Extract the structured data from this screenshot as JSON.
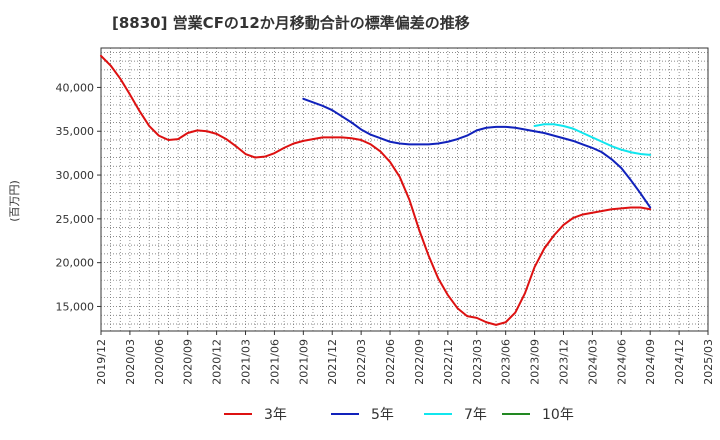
{
  "chart_data": {
    "type": "line",
    "title": "[8830]  営業CFの12か月移動合計の標準偏差の推移",
    "ylabel": "(百万円)",
    "xlabel": "",
    "ylim": [
      12200,
      44500
    ],
    "xlim": [
      "2019-12",
      "2025-03"
    ],
    "grid": true,
    "legend_position": "bottom",
    "x_tick_labels": [
      "2019/12",
      "2020/03",
      "2020/06",
      "2020/09",
      "2020/12",
      "2021/03",
      "2021/06",
      "2021/09",
      "2021/12",
      "2022/03",
      "2022/06",
      "2022/09",
      "2022/12",
      "2023/03",
      "2023/06",
      "2023/09",
      "2023/12",
      "2024/03",
      "2024/06",
      "2024/09",
      "2024/12",
      "2025/03"
    ],
    "y_ticks": [
      15000,
      20000,
      25000,
      30000,
      35000,
      40000
    ],
    "y_tick_labels": [
      "15,000",
      "20,000",
      "25,000",
      "30,000",
      "35,000",
      "40,000"
    ],
    "series": [
      {
        "name": "3年",
        "color": "#dd1111",
        "x": [
          "2019-12",
          "2020-01",
          "2020-02",
          "2020-03",
          "2020-04",
          "2020-05",
          "2020-06",
          "2020-07",
          "2020-08",
          "2020-09",
          "2020-10",
          "2020-11",
          "2020-12",
          "2021-01",
          "2021-02",
          "2021-03",
          "2021-04",
          "2021-05",
          "2021-06",
          "2021-07",
          "2021-08",
          "2021-09",
          "2021-10",
          "2021-11",
          "2021-12",
          "2022-01",
          "2022-02",
          "2022-03",
          "2022-04",
          "2022-05",
          "2022-06",
          "2022-07",
          "2022-08",
          "2022-09",
          "2022-10",
          "2022-11",
          "2022-12",
          "2023-01",
          "2023-02",
          "2023-03",
          "2023-04",
          "2023-05",
          "2023-06",
          "2023-07",
          "2023-08",
          "2023-09",
          "2023-10",
          "2023-11",
          "2023-12",
          "2024-01",
          "2024-02",
          "2024-03",
          "2024-04",
          "2024-05",
          "2024-06",
          "2024-07",
          "2024-08",
          "2024-09"
        ],
        "values": [
          43600,
          42500,
          41000,
          39200,
          37300,
          35600,
          34500,
          34000,
          34100,
          34800,
          35100,
          35000,
          34700,
          34100,
          33300,
          32400,
          32000,
          32100,
          32500,
          33100,
          33600,
          33900,
          34100,
          34300,
          34300,
          34300,
          34200,
          34000,
          33500,
          32700,
          31500,
          29800,
          27200,
          23800,
          20800,
          18200,
          16300,
          14800,
          13900,
          13700,
          13200,
          12900,
          13200,
          14300,
          16500,
          19500,
          21600,
          23100,
          24300,
          25100,
          25500,
          25700,
          25900,
          26100,
          26200,
          26300,
          26300,
          26100
        ]
      },
      {
        "name": "5年",
        "color": "#1122bb",
        "x": [
          "2021-09",
          "2021-10",
          "2021-11",
          "2021-12",
          "2022-01",
          "2022-02",
          "2022-03",
          "2022-04",
          "2022-05",
          "2022-06",
          "2022-07",
          "2022-08",
          "2022-09",
          "2022-10",
          "2022-11",
          "2022-12",
          "2023-01",
          "2023-02",
          "2023-03",
          "2023-04",
          "2023-05",
          "2023-06",
          "2023-07",
          "2023-08",
          "2023-09",
          "2023-10",
          "2023-11",
          "2023-12",
          "2024-01",
          "2024-02",
          "2024-03",
          "2024-04",
          "2024-05",
          "2024-06",
          "2024-07",
          "2024-08",
          "2024-09"
        ],
        "values": [
          38700,
          38300,
          37900,
          37400,
          36700,
          36000,
          35200,
          34600,
          34200,
          33800,
          33600,
          33500,
          33500,
          33500,
          33600,
          33800,
          34100,
          34500,
          35100,
          35400,
          35500,
          35500,
          35400,
          35200,
          35000,
          34800,
          34500,
          34200,
          33900,
          33500,
          33100,
          32600,
          31800,
          30800,
          29400,
          27900,
          26300
        ]
      },
      {
        "name": "7年",
        "color": "#11e6ee",
        "x": [
          "2023-09",
          "2023-10",
          "2023-11",
          "2023-12",
          "2024-01",
          "2024-02",
          "2024-03",
          "2024-04",
          "2024-05",
          "2024-06",
          "2024-07",
          "2024-08",
          "2024-09"
        ],
        "values": [
          35600,
          35800,
          35800,
          35600,
          35300,
          34800,
          34300,
          33800,
          33300,
          32900,
          32600,
          32400,
          32300
        ]
      },
      {
        "name": "10年",
        "color": "#228822",
        "x": [],
        "values": []
      }
    ]
  }
}
